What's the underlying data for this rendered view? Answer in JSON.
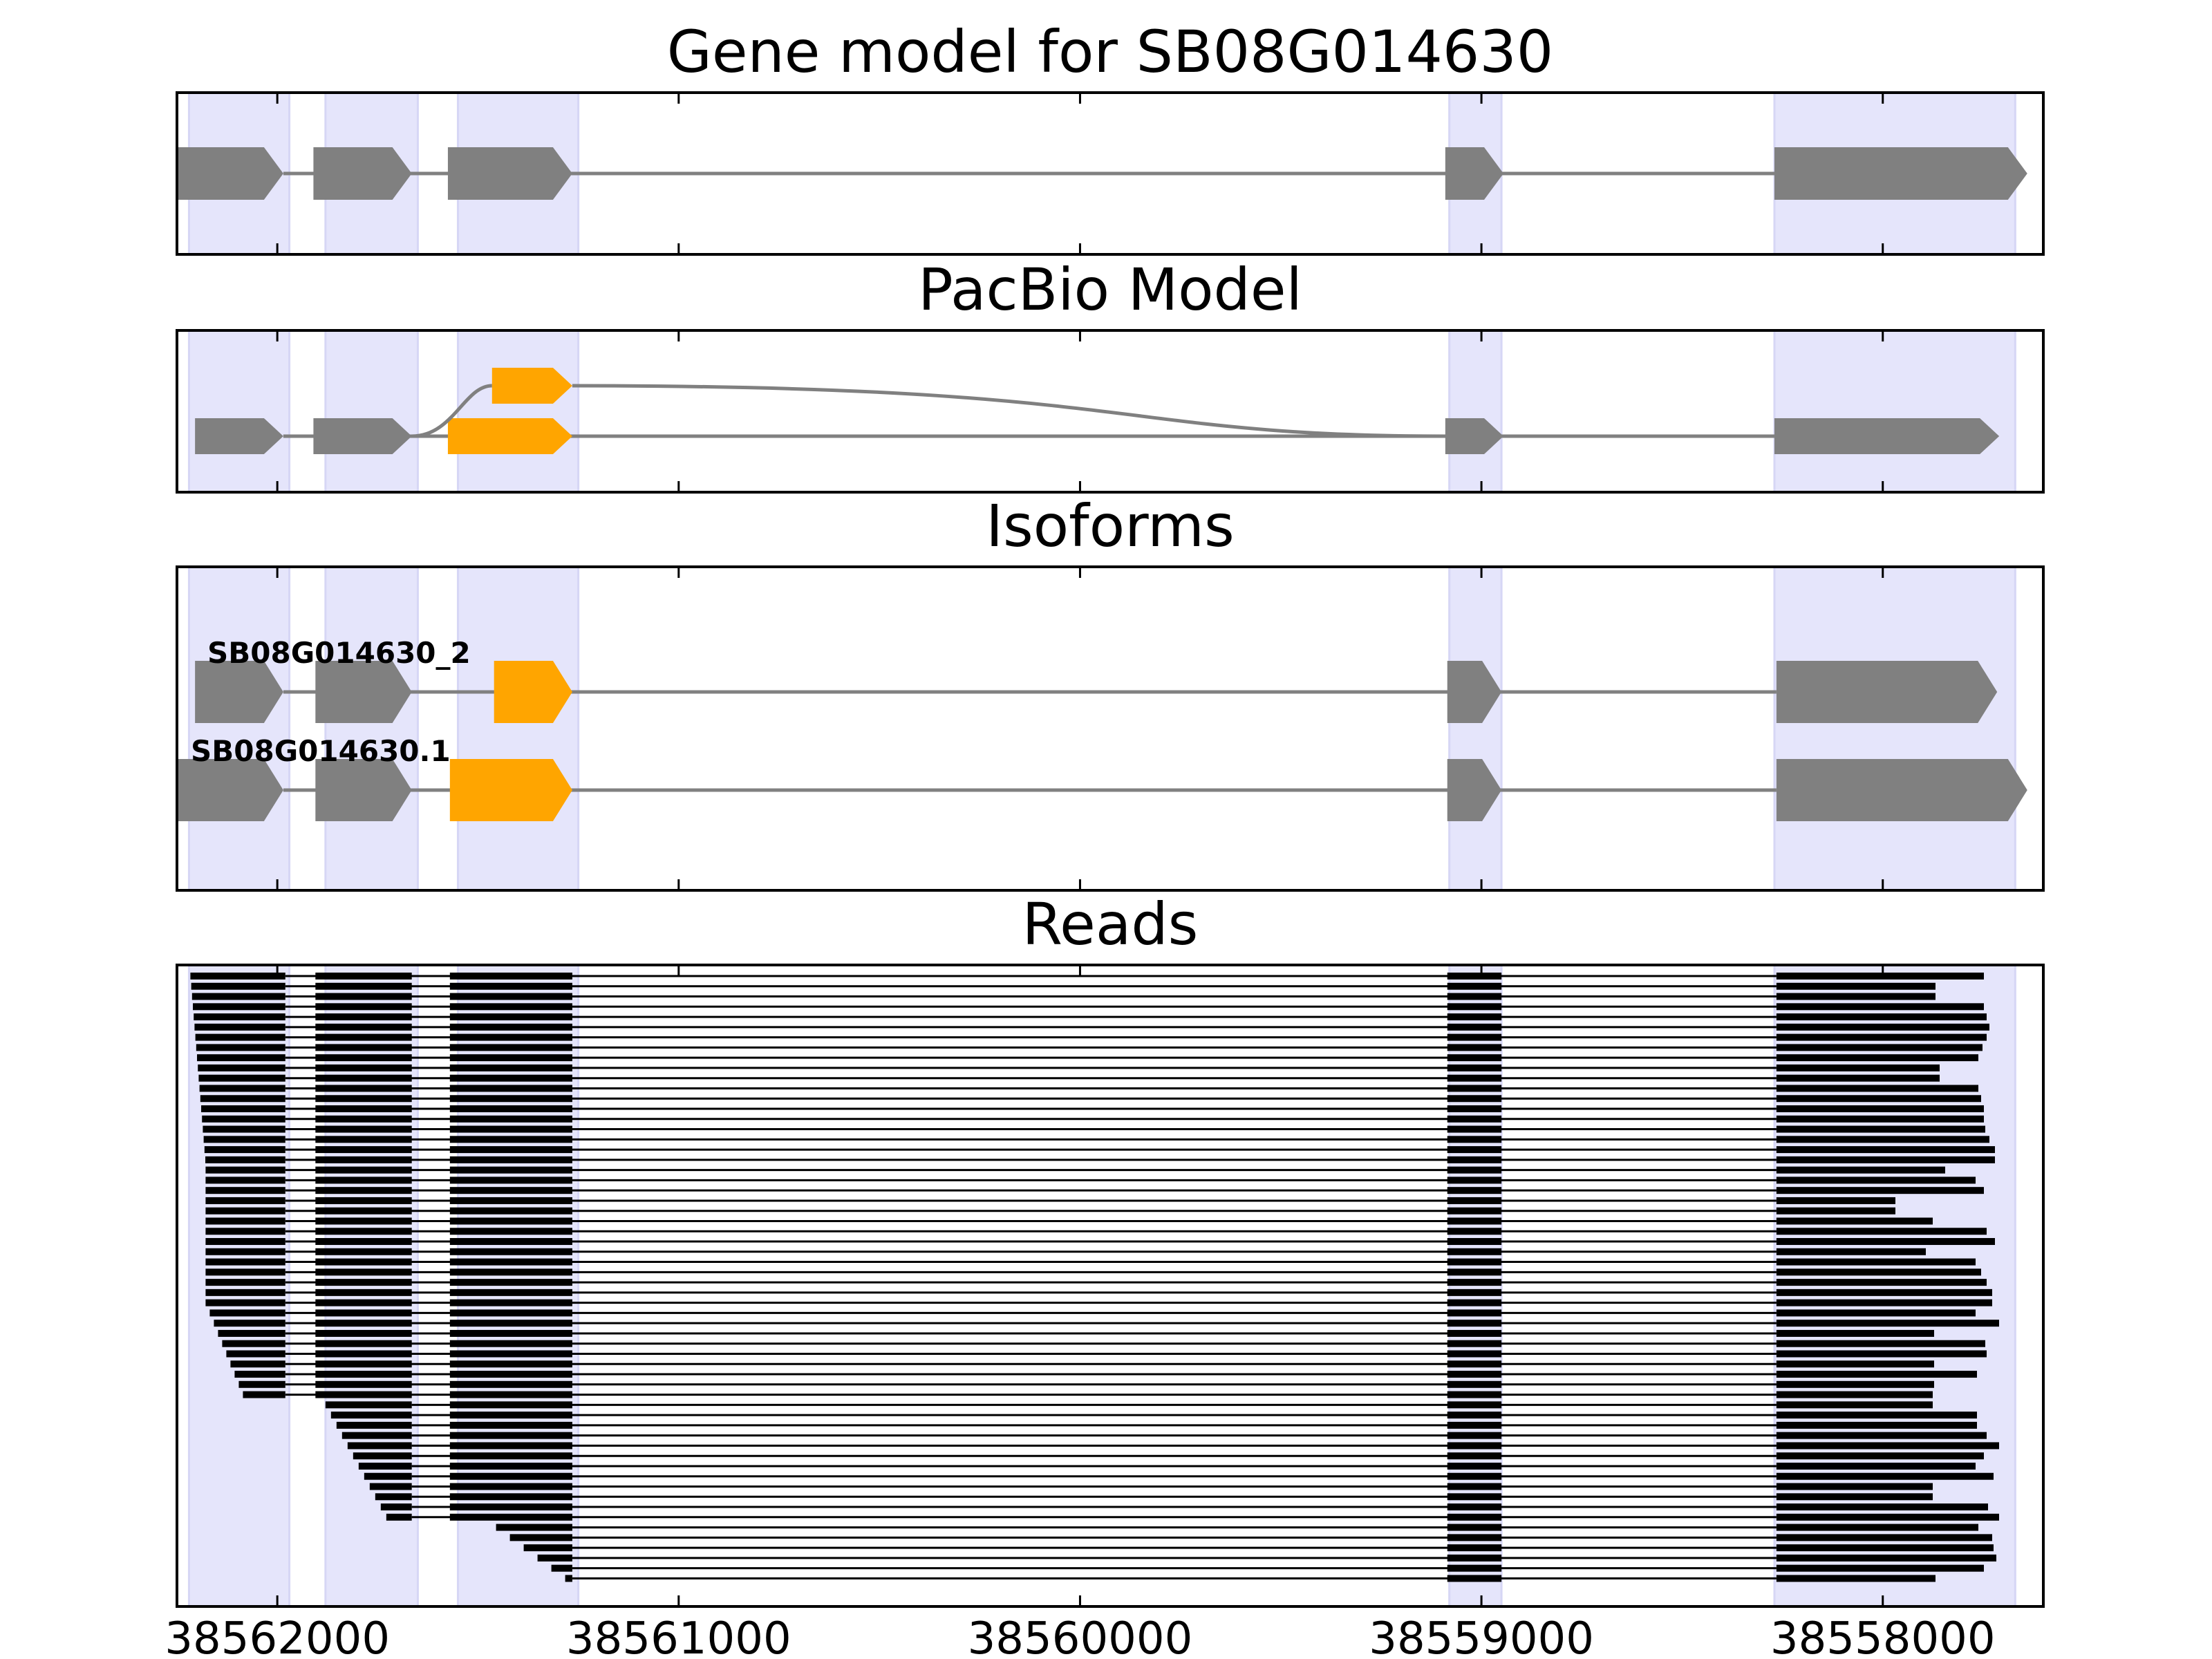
{
  "chart_data": {
    "type": "gene-track",
    "colors": {
      "exon": "#808080",
      "alt_exon": "#ffa500",
      "region": "#e5e5fb",
      "read": "#000000",
      "intron": "#808080"
    },
    "x_range": [
      38562250,
      38557600
    ],
    "x_ticks": [
      38562000,
      38561000,
      38560000,
      38559000,
      38558000
    ],
    "x_tick_labels": [
      "38562000",
      "38561000",
      "38560000",
      "38559000",
      "38558000"
    ],
    "regions": [
      [
        38562220,
        38561970
      ],
      [
        38561880,
        38561650
      ],
      [
        38561550,
        38561250
      ],
      [
        38559080,
        38558950
      ],
      [
        38558270,
        38557670
      ]
    ],
    "panels": [
      {
        "title": "Gene model for SB08G014630",
        "rows": [
          {
            "label": "",
            "exons": [
              [
                38562250,
                38561985
              ],
              [
                38561910,
                38561665
              ],
              [
                38561575,
                38561265
              ],
              [
                38559090,
                38558945
              ],
              [
                38558270,
                38557640
              ]
            ],
            "alt": []
          }
        ]
      },
      {
        "title": "PacBio Model",
        "rows": [
          {
            "label": "",
            "exons": [
              [
                38561465,
                38561265
              ]
            ],
            "alt": [
              0
            ],
            "connect_to": [
              1,
              3
            ]
          },
          {
            "label": "",
            "exons": [
              [
                38562205,
                38561985
              ],
              [
                38561910,
                38561665
              ],
              [
                38561575,
                38561265
              ],
              [
                38559090,
                38558945
              ],
              [
                38558270,
                38557710
              ]
            ],
            "alt": [
              2
            ]
          }
        ]
      },
      {
        "title": "Isoforms",
        "rows": [
          {
            "label": "SB08G014630_2",
            "exons": [
              [
                38562205,
                38561985
              ],
              [
                38561905,
                38561665
              ],
              [
                38561460,
                38561265
              ],
              [
                38559085,
                38558950
              ],
              [
                38558265,
                38557715
              ]
            ],
            "alt": [
              2
            ]
          },
          {
            "label": "SB08G014630.1",
            "exons": [
              [
                38562250,
                38561985
              ],
              [
                38561905,
                38561665
              ],
              [
                38561570,
                38561265
              ],
              [
                38559085,
                38558950
              ],
              [
                38558265,
                38557640
              ]
            ],
            "alt": [
              2
            ]
          }
        ]
      },
      {
        "title": "Reads",
        "read_count": 60,
        "read_exons_shared": [
          [
            38561570,
            38561265
          ],
          [
            38559085,
            38558950
          ]
        ],
        "read_exon1_end": 38561980,
        "read_exon2": [
          38561905,
          38561665
        ],
        "read_exon5_start": 38558265
      }
    ]
  }
}
